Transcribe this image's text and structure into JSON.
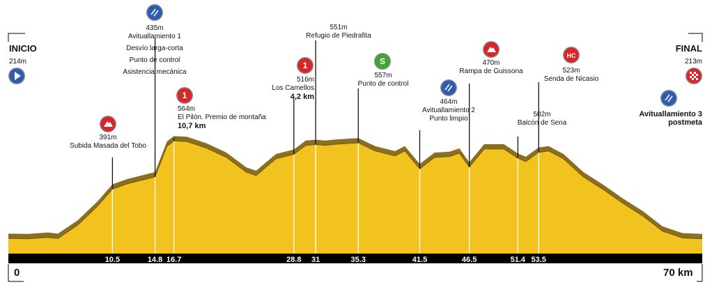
{
  "chart_data": {
    "type": "area",
    "title": "",
    "xlabel": "",
    "ylabel": "",
    "start_label": "INICIO",
    "finish_label": "FINAL",
    "start_elev": "214m",
    "finish_elev": "213m",
    "axis_start": "0",
    "axis_end": "70 km",
    "x_ticks": [
      "10.5",
      "14.8",
      "16.7",
      "28.8",
      "31",
      "35.3",
      "41.5",
      "46.5",
      "51.4",
      "53.5"
    ],
    "profile": [
      {
        "km": 0,
        "elev": 214
      },
      {
        "km": 2,
        "elev": 213
      },
      {
        "km": 4,
        "elev": 218
      },
      {
        "km": 5,
        "elev": 214
      },
      {
        "km": 7,
        "elev": 262
      },
      {
        "km": 9,
        "elev": 330
      },
      {
        "km": 10.5,
        "elev": 391
      },
      {
        "km": 12,
        "elev": 410
      },
      {
        "km": 14.8,
        "elev": 435
      },
      {
        "km": 16,
        "elev": 545
      },
      {
        "km": 16.7,
        "elev": 564
      },
      {
        "km": 18,
        "elev": 562
      },
      {
        "km": 20,
        "elev": 538
      },
      {
        "km": 22,
        "elev": 505
      },
      {
        "km": 24,
        "elev": 452
      },
      {
        "km": 25,
        "elev": 440
      },
      {
        "km": 26,
        "elev": 470
      },
      {
        "km": 27,
        "elev": 500
      },
      {
        "km": 28.8,
        "elev": 516
      },
      {
        "km": 30,
        "elev": 548
      },
      {
        "km": 31,
        "elev": 551
      },
      {
        "km": 32,
        "elev": 548
      },
      {
        "km": 33,
        "elev": 552
      },
      {
        "km": 35.3,
        "elev": 557
      },
      {
        "km": 37,
        "elev": 528
      },
      {
        "km": 39,
        "elev": 510
      },
      {
        "km": 40,
        "elev": 528
      },
      {
        "km": 41.5,
        "elev": 464
      },
      {
        "km": 43,
        "elev": 505
      },
      {
        "km": 44.5,
        "elev": 508
      },
      {
        "km": 45.5,
        "elev": 520
      },
      {
        "km": 46.5,
        "elev": 470
      },
      {
        "km": 48,
        "elev": 535
      },
      {
        "km": 50,
        "elev": 535
      },
      {
        "km": 51.4,
        "elev": 502
      },
      {
        "km": 52.2,
        "elev": 490
      },
      {
        "km": 53.5,
        "elev": 523
      },
      {
        "km": 54.5,
        "elev": 528
      },
      {
        "km": 56,
        "elev": 500
      },
      {
        "km": 58,
        "elev": 435
      },
      {
        "km": 60,
        "elev": 390
      },
      {
        "km": 62,
        "elev": 340
      },
      {
        "km": 64,
        "elev": 295
      },
      {
        "km": 66,
        "elev": 240
      },
      {
        "km": 68,
        "elev": 216
      },
      {
        "km": 70,
        "elev": 213
      }
    ],
    "points": [
      {
        "km": 10.5,
        "elev_label": "391m",
        "lines": [
          "Subida Masada del Tobo"
        ],
        "icon": "climb-icon"
      },
      {
        "km": 14.8,
        "elev_label": "435m",
        "lines": [
          "Avituallamiento 1",
          "Desvío larga-corta",
          "Punto de control",
          "Asistencia mecánica"
        ],
        "icon": "feed-icon"
      },
      {
        "km": 16.7,
        "elev_label": "564m",
        "lines": [
          "El Pilón. Premio de montaña",
          "10,7 km"
        ],
        "icon": "category-1-icon"
      },
      {
        "km": 28.8,
        "elev_label": "516m",
        "lines": [
          "Los Camellos",
          "4,2 km"
        ],
        "icon": "category-1-icon"
      },
      {
        "km": 31,
        "elev_label": "551m",
        "lines": [
          "Refugio de Piedrafita"
        ],
        "icon": ""
      },
      {
        "km": 35.3,
        "elev_label": "557m",
        "lines": [
          "Punto de control"
        ],
        "icon": "sprint-icon"
      },
      {
        "km": 41.5,
        "elev_label": "464m",
        "lines": [
          "Avituallamiento 2",
          "Punto limpio"
        ],
        "icon": "feed-icon"
      },
      {
        "km": 46.5,
        "elev_label": "470m",
        "lines": [
          "Rampa de Guissona"
        ],
        "icon": "climb-icon"
      },
      {
        "km": 51.4,
        "elev_label": "502m",
        "lines": [
          "Balcón de Sena"
        ],
        "icon": ""
      },
      {
        "km": 53.5,
        "elev_label": "523m",
        "lines": [
          "Senda de Nicasio"
        ],
        "icon": "hors-categorie-icon"
      },
      {
        "km": 70,
        "elev_label": "",
        "lines": [
          "Avituallamiento 3",
          "postmeta"
        ],
        "icon": "feed-icon"
      }
    ],
    "icon_texts": {
      "cat1": "1",
      "hc": "HC",
      "sprint": "S"
    },
    "colors": {
      "fill": "#F2C21E",
      "shadow": "#8B6F1E",
      "axis_bar": "#000000",
      "icon_blue": "#2D5CB5",
      "icon_red": "#D9252A",
      "icon_green": "#3FA535"
    }
  }
}
